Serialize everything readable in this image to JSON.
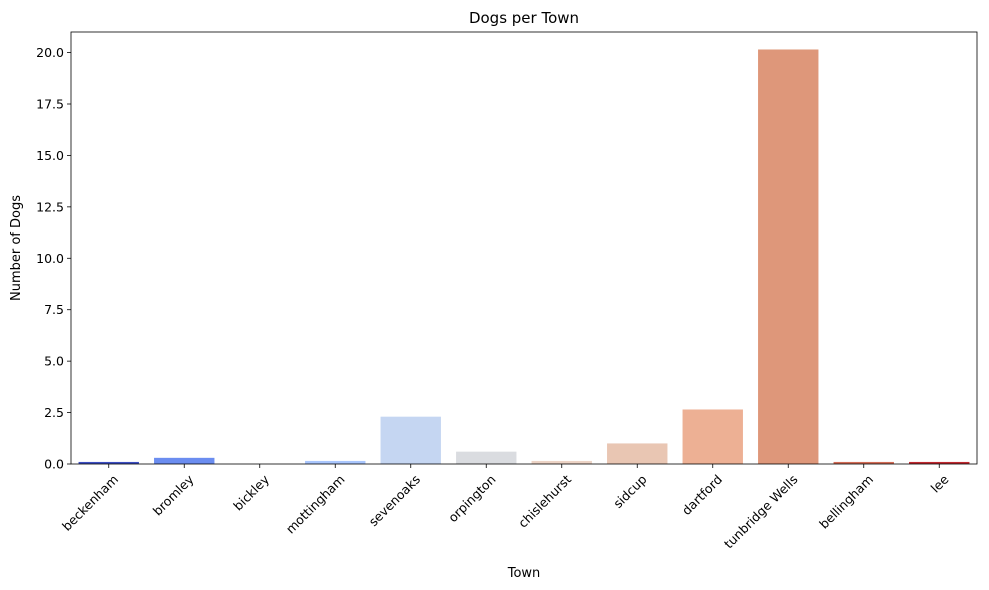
{
  "chart_data": {
    "type": "bar",
    "title": "Dogs per Town",
    "xlabel": "Town",
    "ylabel": "Number of Dogs",
    "categories": [
      "beckenham",
      "bromley",
      "bickley",
      "mottingham",
      "sevenoaks",
      "orpington",
      "chislehurst",
      "sidcup",
      "dartford",
      "tunbridge Wells",
      "bellingham",
      "lee"
    ],
    "values": [
      0.1,
      0.3,
      0.0,
      0.15,
      2.3,
      0.6,
      0.15,
      1.0,
      2.65,
      20.15,
      0.1,
      0.1
    ],
    "colors": [
      "#3c4ec2",
      "#6b8df0",
      "#8fb1fe",
      "#a9c6fd",
      "#c5d6f2",
      "#dadce0",
      "#ecd3c5",
      "#e9c6b3",
      "#edb094",
      "#de977a",
      "#d36b55",
      "#c0282f"
    ],
    "ylim": [
      0,
      21
    ],
    "yticks": [
      0.0,
      2.5,
      5.0,
      7.5,
      10.0,
      12.5,
      15.0,
      17.5,
      20.0
    ],
    "grid": false,
    "legend": "none"
  }
}
